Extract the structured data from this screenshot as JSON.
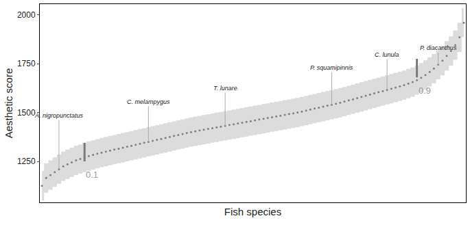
{
  "chart_data": {
    "type": "scatter",
    "x_label": "Fish species",
    "y_label": "Aesthetic score",
    "tick_labels": "y",
    "grid": false,
    "ylim": [
      1040,
      2055
    ],
    "yticks": [
      1250,
      1500,
      1750,
      2000
    ],
    "categories": [
      null,
      null,
      null,
      null,
      null,
      null,
      null,
      null,
      null,
      null,
      null,
      null,
      null,
      null,
      null,
      null,
      null,
      null,
      null,
      null,
      null,
      null,
      null,
      null,
      null,
      null,
      null,
      null,
      null,
      null,
      null,
      null,
      null,
      null,
      null,
      null,
      null,
      null,
      null,
      null,
      null,
      null,
      null,
      null,
      null,
      null,
      null,
      null,
      null,
      null,
      null,
      null,
      null,
      null,
      null,
      null,
      null,
      null,
      null,
      null,
      null,
      null,
      null,
      null,
      null,
      null,
      null,
      null,
      null,
      null,
      null,
      null,
      null,
      null,
      null,
      null,
      null,
      null,
      null,
      null,
      null,
      null,
      null,
      null,
      null,
      null,
      null,
      null,
      null,
      null,
      null,
      null,
      null,
      null,
      null,
      null,
      null,
      null,
      null,
      null
    ],
    "series": [
      {
        "color": "#808080",
        "marker": "circle",
        "values": [
          1125,
          1165,
          1180,
          1195,
          1210,
          1225,
          1235,
          1245,
          1255,
          1262,
          1270,
          1277,
          1283,
          1289,
          1295,
          1300,
          1305,
          1310,
          1315,
          1320,
          1325,
          1330,
          1335,
          1340,
          1345,
          1350,
          1355,
          1360,
          1365,
          1370,
          1375,
          1380,
          1385,
          1390,
          1395,
          1400,
          1404,
          1408,
          1412,
          1416,
          1420,
          1424,
          1428,
          1432,
          1436,
          1440,
          1444,
          1448,
          1452,
          1456,
          1460,
          1464,
          1468,
          1472,
          1476,
          1480,
          1484,
          1488,
          1492,
          1496,
          1500,
          1505,
          1510,
          1515,
          1520,
          1525,
          1530,
          1535,
          1540,
          1545,
          1550,
          1556,
          1562,
          1568,
          1574,
          1580,
          1586,
          1592,
          1598,
          1604,
          1610,
          1616,
          1622,
          1628,
          1634,
          1640,
          1648,
          1656,
          1666,
          1678,
          1692,
          1708,
          1725,
          1745,
          1765,
          1790,
          1815,
          1845,
          1885,
          1960
        ],
        "lower": [
          1050,
          1090,
          1105,
          1120,
          1135,
          1150,
          1160,
          1170,
          1180,
          1187,
          1195,
          1202,
          1208,
          1214,
          1220,
          1225,
          1230,
          1235,
          1240,
          1245,
          1250,
          1255,
          1260,
          1265,
          1270,
          1275,
          1280,
          1285,
          1290,
          1295,
          1300,
          1305,
          1310,
          1315,
          1320,
          1325,
          1329,
          1333,
          1337,
          1341,
          1345,
          1349,
          1353,
          1357,
          1361,
          1365,
          1369,
          1373,
          1377,
          1381,
          1385,
          1389,
          1393,
          1397,
          1401,
          1405,
          1409,
          1413,
          1417,
          1421,
          1425,
          1430,
          1435,
          1440,
          1445,
          1450,
          1455,
          1460,
          1465,
          1470,
          1475,
          1481,
          1487,
          1493,
          1499,
          1505,
          1511,
          1517,
          1523,
          1529,
          1535,
          1541,
          1547,
          1553,
          1559,
          1565,
          1573,
          1581,
          1591,
          1603,
          1617,
          1633,
          1650,
          1670,
          1690,
          1715,
          1740,
          1770,
          1810,
          1885
        ],
        "upper": [
          1200,
          1240,
          1255,
          1270,
          1285,
          1300,
          1310,
          1320,
          1330,
          1337,
          1345,
          1352,
          1358,
          1364,
          1370,
          1375,
          1380,
          1385,
          1390,
          1395,
          1400,
          1405,
          1410,
          1415,
          1420,
          1425,
          1430,
          1435,
          1440,
          1445,
          1450,
          1455,
          1460,
          1465,
          1470,
          1475,
          1479,
          1483,
          1487,
          1491,
          1495,
          1499,
          1503,
          1507,
          1511,
          1515,
          1519,
          1523,
          1527,
          1531,
          1535,
          1539,
          1543,
          1547,
          1551,
          1555,
          1559,
          1563,
          1567,
          1571,
          1575,
          1580,
          1585,
          1590,
          1595,
          1600,
          1605,
          1610,
          1615,
          1620,
          1625,
          1631,
          1637,
          1643,
          1649,
          1655,
          1661,
          1667,
          1673,
          1679,
          1685,
          1691,
          1697,
          1703,
          1709,
          1715,
          1723,
          1731,
          1741,
          1753,
          1767,
          1783,
          1800,
          1820,
          1840,
          1865,
          1890,
          1920,
          1960,
          2035
        ]
      }
    ],
    "annotations": [
      {
        "text": "A. nigropunctatus",
        "index": 4,
        "y": 1210,
        "label_y": 1485
      },
      {
        "text": "C. melampygus",
        "index": 25,
        "y": 1350,
        "label_y": 1555
      },
      {
        "text": "T. lunare",
        "index": 43,
        "y": 1432,
        "label_y": 1625
      },
      {
        "text": "P. squamipinnis",
        "index": 68,
        "y": 1540,
        "label_y": 1730
      },
      {
        "text": "C. lunula",
        "index": 81,
        "y": 1616,
        "label_y": 1795
      },
      {
        "text": "P. diacanthus",
        "index": 93,
        "y": 1745,
        "label_y": 1830
      }
    ],
    "quantile_marks": [
      {
        "label": "0.1",
        "index": 10,
        "low": 1250,
        "high": 1345
      },
      {
        "label": "0.9",
        "index": 88,
        "low": 1680,
        "high": 1775
      }
    ]
  }
}
